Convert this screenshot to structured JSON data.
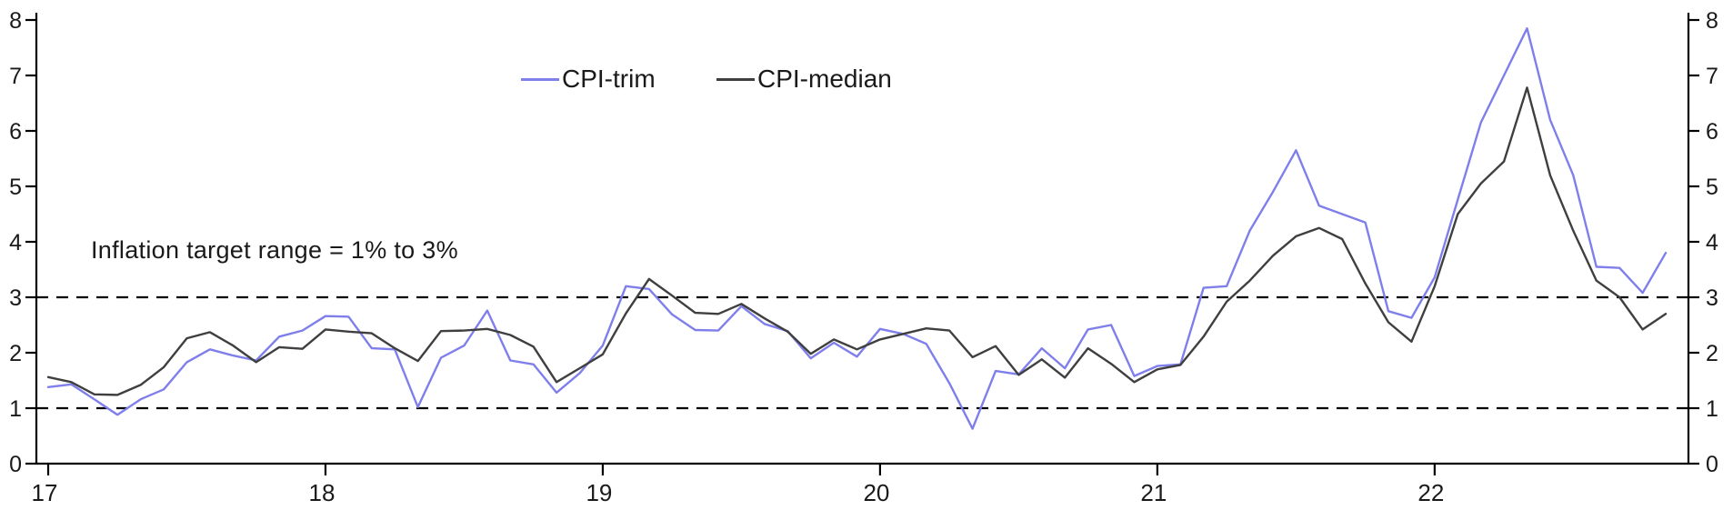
{
  "chart_data": {
    "type": "line",
    "title": "",
    "x_start": "2017-01",
    "x_end": "2022-11",
    "x_tick_labels": [
      "17",
      "18",
      "19",
      "20",
      "21",
      "22"
    ],
    "x_tick_month_index": [
      0,
      12,
      24,
      36,
      48,
      60
    ],
    "y_ticks": [
      "0",
      "1",
      "2",
      "3",
      "4",
      "5",
      "6",
      "7",
      "8"
    ],
    "ylim": [
      0,
      8
    ],
    "grid": "off",
    "legend_position": "top-center",
    "target_lines": {
      "lower": 1,
      "upper": 3,
      "style": "dashed",
      "color": "#000000"
    },
    "annotation": "Inflation target range = 1% to 3%",
    "series": [
      {
        "name": "CPI-trim",
        "color": "#7f7fec",
        "values": [
          1.38,
          1.43,
          1.16,
          0.88,
          1.16,
          1.34,
          1.83,
          2.06,
          1.95,
          1.86,
          2.29,
          2.4,
          2.66,
          2.65,
          2.08,
          2.06,
          1.02,
          1.91,
          2.13,
          2.76,
          1.86,
          1.79,
          1.28,
          1.63,
          2.13,
          3.2,
          3.15,
          2.69,
          2.41,
          2.4,
          2.84,
          2.52,
          2.39,
          1.9,
          2.18,
          1.93,
          2.43,
          2.34,
          2.16,
          1.45,
          0.63,
          1.67,
          1.61,
          2.08,
          1.72,
          2.42,
          2.5,
          1.58,
          1.76,
          1.79,
          3.17,
          3.2,
          4.2,
          4.9,
          5.65,
          4.65,
          4.5,
          4.35,
          2.75,
          2.63,
          3.36,
          4.76,
          6.15,
          7.0,
          7.85,
          6.2,
          5.2,
          3.55,
          3.53,
          3.08,
          3.8
        ]
      },
      {
        "name": "CPI-median",
        "color": "#3f3f3f",
        "values": [
          1.56,
          1.47,
          1.25,
          1.24,
          1.42,
          1.74,
          2.26,
          2.37,
          2.13,
          1.83,
          2.1,
          2.07,
          2.42,
          2.38,
          2.35,
          2.08,
          1.85,
          2.39,
          2.4,
          2.43,
          2.32,
          2.11,
          1.47,
          1.72,
          1.97,
          2.71,
          3.33,
          3.03,
          2.72,
          2.7,
          2.88,
          2.62,
          2.38,
          1.98,
          2.24,
          2.06,
          2.24,
          2.34,
          2.44,
          2.4,
          1.92,
          2.12,
          1.6,
          1.88,
          1.55,
          2.08,
          1.8,
          1.47,
          1.7,
          1.78,
          2.29,
          2.92,
          3.3,
          3.75,
          4.1,
          4.25,
          4.05,
          3.25,
          2.55,
          2.2,
          3.2,
          4.5,
          5.05,
          5.45,
          6.78,
          5.2,
          4.2,
          3.3,
          3.0,
          2.42,
          2.7
        ]
      }
    ]
  },
  "colors": {
    "axis": "#000000",
    "text": "#1a1a1a",
    "background": "#ffffff"
  }
}
